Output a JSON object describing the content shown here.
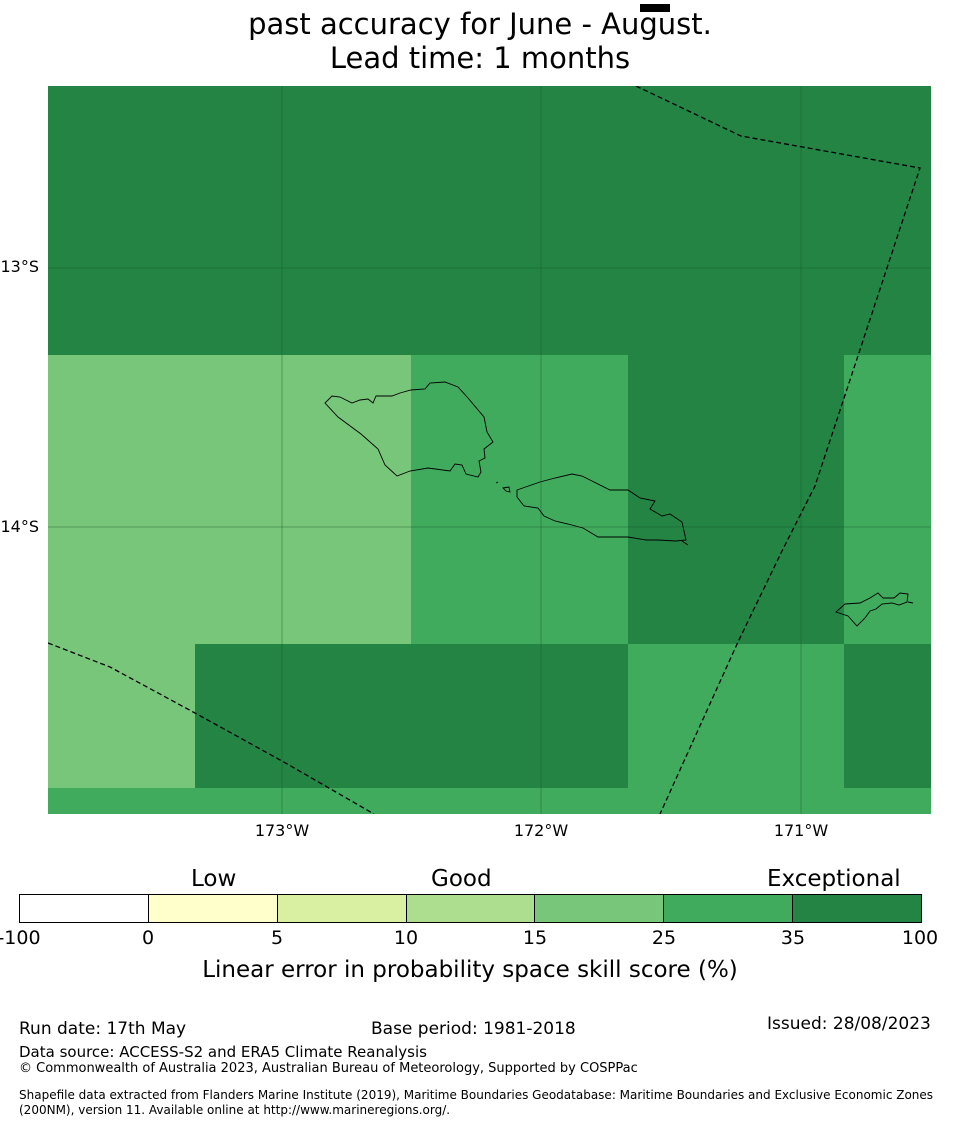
{
  "title": {
    "line1": "past accuracy for June - August.",
    "line2": "Lead time: 1 months"
  },
  "map": {
    "lat_labels": [
      "13°S",
      "14°S"
    ],
    "lon_labels": [
      "173°W",
      "172°W",
      "171°W"
    ],
    "boundary_style": "dashed",
    "coastline_color": "#000000",
    "grid": true
  },
  "colorbar": {
    "categories": [
      "Low",
      "Good",
      "Exceptional"
    ],
    "ticks": [
      "-100",
      "0",
      "5",
      "10",
      "15",
      "25",
      "35",
      "100"
    ],
    "colors": [
      "#ffffff",
      "#ffffcc",
      "#d9f0a3",
      "#addd8e",
      "#78c679",
      "#41ab5d",
      "#238443"
    ],
    "label": "Linear error in probability space skill score (%)"
  },
  "grid_cells": [
    {
      "lon": "173.5°W–170.5°W",
      "lat": "12.5°S–13.3°S",
      "class": "35 to 100"
    },
    {
      "lon": "173.5°W–172.5°W",
      "lat": "13.3°S–14.4°S",
      "class": "15 to 25"
    },
    {
      "lon": "172.5°W–171.7°W",
      "lat": "13.3°S–14.4°S",
      "class": "25 to 35"
    },
    {
      "lon": "171.7°W–170.8°W",
      "lat": "13.3°S–14.4°S",
      "class": "35 to 100"
    },
    {
      "lon": "170.8°W–170.5°W",
      "lat": "13.3°S–14.4°S",
      "class": "25 to 35"
    }
  ],
  "footer": {
    "run_date": "Run date: 17th May",
    "base_period": "Base period: 1981-2018",
    "issued": "Issued: 28/08/2023",
    "data_source": "Data source: ACCESS-S2 and ERA5 Climate Reanalysis",
    "copyright": "© Commonwealth of Australia 2023, Australian Bureau of Meteorology, Supported by COSPPac",
    "shapefile_line1": "Shapefile data extracted from Flanders Marine Institute (2019), Maritime Boundaries Geodatabase: Maritime Boundaries and Exclusive Economic Zones",
    "shapefile_line2": "(200NM), version 11. Available online at http://www.marineregions.org/."
  }
}
